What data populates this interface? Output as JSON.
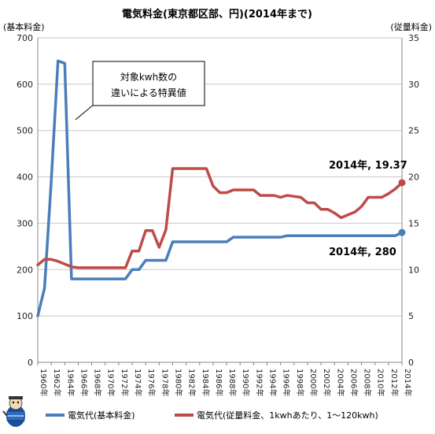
{
  "chart_data": {
    "type": "line",
    "title": "電気料金(東京都区部、円)(2014年まで)",
    "ylabel_left": "(基本料金)",
    "ylabel_right": "(従量料金)",
    "ylim_left": [
      0,
      700
    ],
    "ylim_right": [
      0,
      35
    ],
    "yticks_left": [
      "0",
      "100",
      "200",
      "300",
      "400",
      "500",
      "600",
      "700"
    ],
    "yticks_right": [
      "0",
      "5",
      "10",
      "15",
      "20",
      "25",
      "30",
      "35"
    ],
    "x": [
      1960,
      1961,
      1962,
      1963,
      1964,
      1965,
      1966,
      1967,
      1968,
      1969,
      1970,
      1971,
      1972,
      1973,
      1974,
      1975,
      1976,
      1977,
      1978,
      1979,
      1980,
      1981,
      1982,
      1983,
      1984,
      1985,
      1986,
      1987,
      1988,
      1989,
      1990,
      1991,
      1992,
      1993,
      1994,
      1995,
      1996,
      1997,
      1998,
      1999,
      2000,
      2001,
      2002,
      2003,
      2004,
      2005,
      2006,
      2007,
      2008,
      2009,
      2010,
      2011,
      2012,
      2013,
      2014
    ],
    "xtick_labels": [
      "1960年",
      "1962年",
      "1964年",
      "1966年",
      "1968年",
      "1970年",
      "1972年",
      "1974年",
      "1976年",
      "1978年",
      "1980年",
      "1982年",
      "1984年",
      "1986年",
      "1988年",
      "1990年",
      "1992年",
      "1994年",
      "1996年",
      "1998年",
      "2000年",
      "2002年",
      "2004年",
      "2006年",
      "2008年",
      "2010年",
      "2012年",
      "2014年"
    ],
    "grid": true,
    "legend_position": "bottom",
    "series": [
      {
        "name": "電気代(基本料金)",
        "axis": "left",
        "color": "#4a7ebb",
        "values": [
          100,
          160,
          390,
          650,
          645,
          180,
          180,
          180,
          180,
          180,
          180,
          180,
          180,
          180,
          200,
          200,
          220,
          220,
          220,
          220,
          260,
          260,
          260,
          260,
          260,
          260,
          260,
          260,
          260,
          270,
          270,
          270,
          270,
          270,
          270,
          270,
          270,
          273,
          273,
          273,
          273,
          273,
          273,
          273,
          273,
          273,
          273,
          273,
          273,
          273,
          273,
          273,
          273,
          273,
          280
        ]
      },
      {
        "name": "電気代(従量料金、1kwhあたり、1〜120kwh)",
        "axis": "right",
        "color": "#be4b48",
        "values": [
          10.5,
          11.1,
          11.1,
          10.9,
          10.6,
          10.3,
          10.2,
          10.2,
          10.2,
          10.2,
          10.2,
          10.2,
          10.2,
          10.2,
          12.0,
          12.0,
          14.2,
          14.2,
          12.4,
          14.3,
          20.9,
          20.9,
          20.9,
          20.9,
          20.9,
          20.9,
          19.0,
          18.3,
          18.3,
          18.6,
          18.6,
          18.6,
          18.6,
          18.0,
          18.0,
          18.0,
          17.8,
          18.0,
          17.9,
          17.8,
          17.2,
          17.2,
          16.5,
          16.5,
          16.1,
          15.6,
          15.9,
          16.2,
          16.8,
          17.8,
          17.8,
          17.8,
          18.2,
          18.7,
          19.37
        ]
      }
    ],
    "annotations": {
      "callout_line1": "対象kwh数の",
      "callout_line2": "違いによる特異値",
      "red_end": "2014年, 19.37",
      "blue_end": "2014年, 280"
    }
  }
}
